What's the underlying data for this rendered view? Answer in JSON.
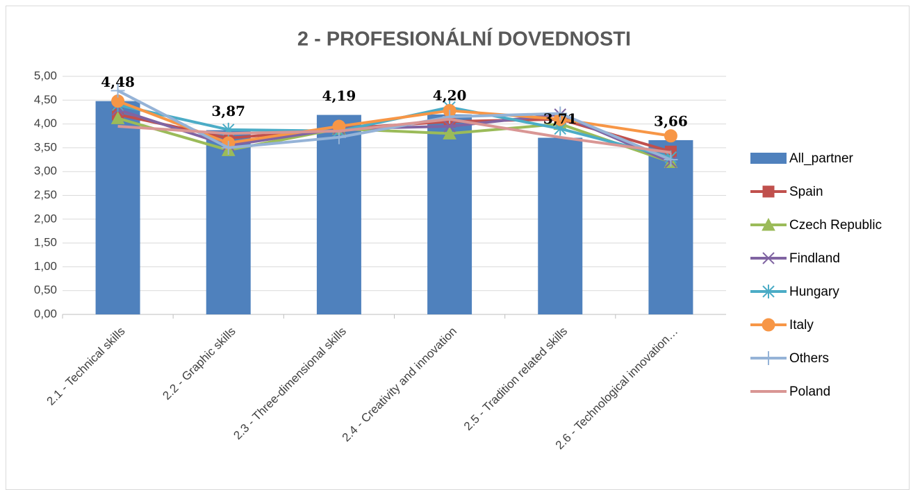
{
  "chart_data": {
    "type": "bar",
    "title": "2 - PROFESIONÁLNÍ DOVEDNOSTI",
    "categories": [
      "2.1 - Technical skills",
      "2.2 - Graphic skills",
      "2.3 - Three-dimensional skills",
      "2.4 - Creativity and innovation",
      "2.5 - Tradition related skills",
      "2.6 - Technological innovation…"
    ],
    "series": [
      {
        "name": "All_partner",
        "type": "bar",
        "color": "#4f81bd",
        "values": [
          4.48,
          3.87,
          4.19,
          4.2,
          3.71,
          3.66
        ],
        "value_labels": [
          "4,48",
          "3,87",
          "4,19",
          "4,20",
          "3,71",
          "3,66"
        ]
      },
      {
        "name": "Spain",
        "type": "line",
        "marker": "square",
        "color": "#c0504d",
        "values": [
          4.2,
          3.7,
          3.9,
          4.05,
          4.1,
          3.42
        ]
      },
      {
        "name": "Czech Republic",
        "type": "line",
        "marker": "triangle",
        "color": "#9bbb59",
        "values": [
          4.12,
          3.45,
          3.9,
          3.8,
          4.0,
          3.2
        ]
      },
      {
        "name": "Findland",
        "type": "line",
        "marker": "x",
        "color": "#8064a2",
        "values": [
          4.3,
          3.55,
          3.9,
          3.95,
          4.2,
          3.2
        ]
      },
      {
        "name": "Hungary",
        "type": "line",
        "marker": "star",
        "color": "#4bacc6",
        "values": [
          4.4,
          3.88,
          3.85,
          4.35,
          3.9,
          3.3
        ]
      },
      {
        "name": "Italy",
        "type": "line",
        "marker": "circle",
        "color": "#f79646",
        "values": [
          4.48,
          3.6,
          3.95,
          4.28,
          4.1,
          3.75
        ]
      },
      {
        "name": "Others",
        "type": "line",
        "marker": "plus",
        "color": "#95b3d7",
        "values": [
          4.7,
          3.5,
          3.72,
          4.15,
          4.22,
          3.25
        ]
      },
      {
        "name": "Poland",
        "type": "line",
        "marker": "none",
        "color": "#d99694",
        "values": [
          3.95,
          3.8,
          3.85,
          4.1,
          3.72,
          3.4
        ]
      }
    ],
    "ylim": [
      0,
      5
    ],
    "yticks": [
      {
        "value": 0,
        "label": "0,00"
      },
      {
        "value": 0.5,
        "label": "0,50"
      },
      {
        "value": 1,
        "label": "1,00"
      },
      {
        "value": 1.5,
        "label": "1,50"
      },
      {
        "value": 2,
        "label": "2,00"
      },
      {
        "value": 2.5,
        "label": "2,50"
      },
      {
        "value": 3,
        "label": "3,00"
      },
      {
        "value": 3.5,
        "label": "3,50"
      },
      {
        "value": 4,
        "label": "4,00"
      },
      {
        "value": 4.5,
        "label": "4,50"
      },
      {
        "value": 5,
        "label": "5,00"
      }
    ],
    "grid": true,
    "legend": "right"
  }
}
